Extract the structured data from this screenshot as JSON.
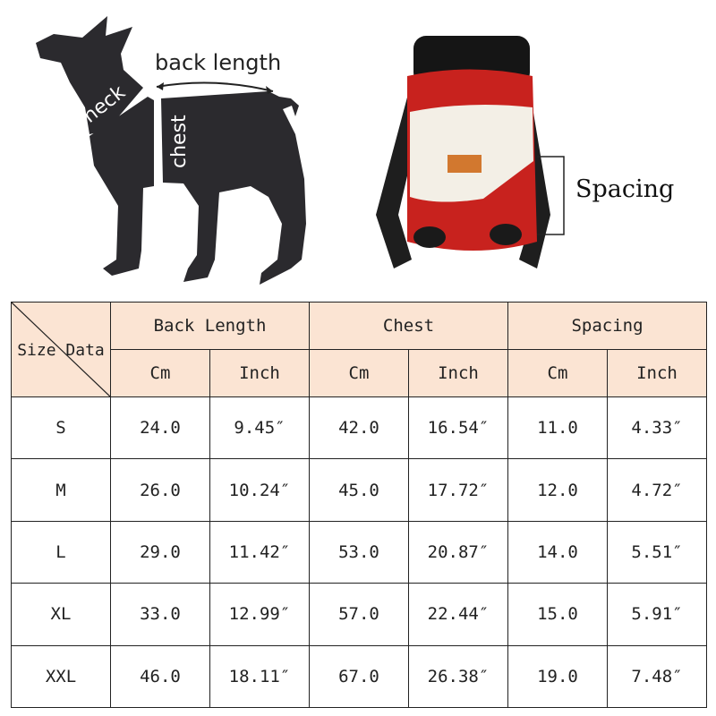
{
  "diagram": {
    "dog_labels": {
      "back_length": "back length",
      "neck": "neck",
      "chest": "chest"
    },
    "carrier_label": "Spacing",
    "colors": {
      "silhouette": "#2b2a2e",
      "carrier_red": "#c8221e",
      "carrier_cream": "#f3efe6",
      "header_fill": "#fbe4d3"
    }
  },
  "size_table": {
    "corner_label": "Size Data",
    "groups": [
      "Back Length",
      "Chest",
      "Spacing"
    ],
    "units": [
      "Cm",
      "Inch",
      "Cm",
      "Inch",
      "Cm",
      "Inch"
    ],
    "rows": [
      {
        "size": "S",
        "values": [
          "24.0",
          "9.45″",
          "42.0",
          "16.54″",
          "11.0",
          "4.33″"
        ]
      },
      {
        "size": "M",
        "values": [
          "26.0",
          "10.24″",
          "45.0",
          "17.72″",
          "12.0",
          "4.72″"
        ]
      },
      {
        "size": "L",
        "values": [
          "29.0",
          "11.42″",
          "53.0",
          "20.87″",
          "14.0",
          "5.51″"
        ]
      },
      {
        "size": "XL",
        "values": [
          "33.0",
          "12.99″",
          "57.0",
          "22.44″",
          "15.0",
          "5.91″"
        ]
      },
      {
        "size": "XXL",
        "values": [
          "46.0",
          "18.11″",
          "67.0",
          "26.38″",
          "19.0",
          "7.48″"
        ]
      }
    ]
  }
}
